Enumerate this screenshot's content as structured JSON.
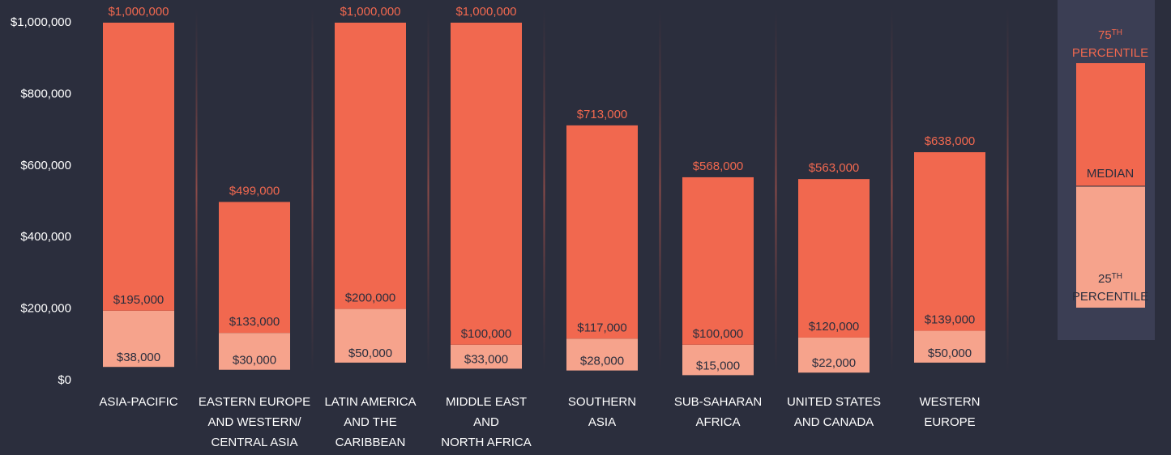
{
  "chart_data": {
    "type": "floating-bar",
    "categories": [
      [
        "ASIA-PACIFIC"
      ],
      [
        "EASTERN EUROPE",
        "AND WESTERN/",
        "CENTRAL ASIA"
      ],
      [
        "LATIN AMERICA",
        "AND THE",
        "CARIBBEAN"
      ],
      [
        "MIDDLE EAST",
        "AND",
        "NORTH AFRICA"
      ],
      [
        "SOUTHERN",
        "ASIA"
      ],
      [
        "SUB-SAHARAN",
        "AFRICA"
      ],
      [
        "UNITED STATES",
        "AND CANADA"
      ],
      [
        "WESTERN",
        "EUROPE"
      ]
    ],
    "series": [
      {
        "name": "25TH PERCENTILE",
        "color": "#f6a38c",
        "values": [
          38000,
          30000,
          50000,
          33000,
          28000,
          15000,
          22000,
          50000
        ],
        "value_labels": [
          "$38,000",
          "$30,000",
          "$50,000",
          "$33,000",
          "$28,000",
          "$15,000",
          "$22,000",
          "$50,000"
        ]
      },
      {
        "name": "MEDIAN",
        "color": "#f1684f",
        "values": [
          195000,
          133000,
          200000,
          100000,
          117000,
          100000,
          120000,
          139000
        ],
        "value_labels": [
          "$195,000",
          "$133,000",
          "$200,000",
          "$100,000",
          "$117,000",
          "$100,000",
          "$120,000",
          "$139,000"
        ]
      },
      {
        "name": "75TH PERCENTILE",
        "color": "#f1684f",
        "values": [
          1000000,
          499000,
          1000000,
          1000000,
          713000,
          568000,
          563000,
          638000
        ],
        "value_labels": [
          "$1,000,000",
          "$499,000",
          "$1,000,000",
          "$1,000,000",
          "$713,000",
          "$568,000",
          "$563,000",
          "$638,000"
        ]
      }
    ],
    "ylim": [
      0,
      1000000
    ],
    "yticks": [
      {
        "value": 0,
        "label": "$0"
      },
      {
        "value": 200000,
        "label": "$200,000"
      },
      {
        "value": 400000,
        "label": "$400,000"
      },
      {
        "value": 600000,
        "label": "$600,000"
      },
      {
        "value": 800000,
        "label": "$800,000"
      },
      {
        "value": 1000000,
        "label": "$1,000,000"
      }
    ],
    "legend": {
      "top": [
        "75",
        "TH",
        "PERCENTILE"
      ],
      "middle": "MEDIAN",
      "bottom": [
        "25",
        "TH",
        "PERCENTILE"
      ]
    }
  }
}
